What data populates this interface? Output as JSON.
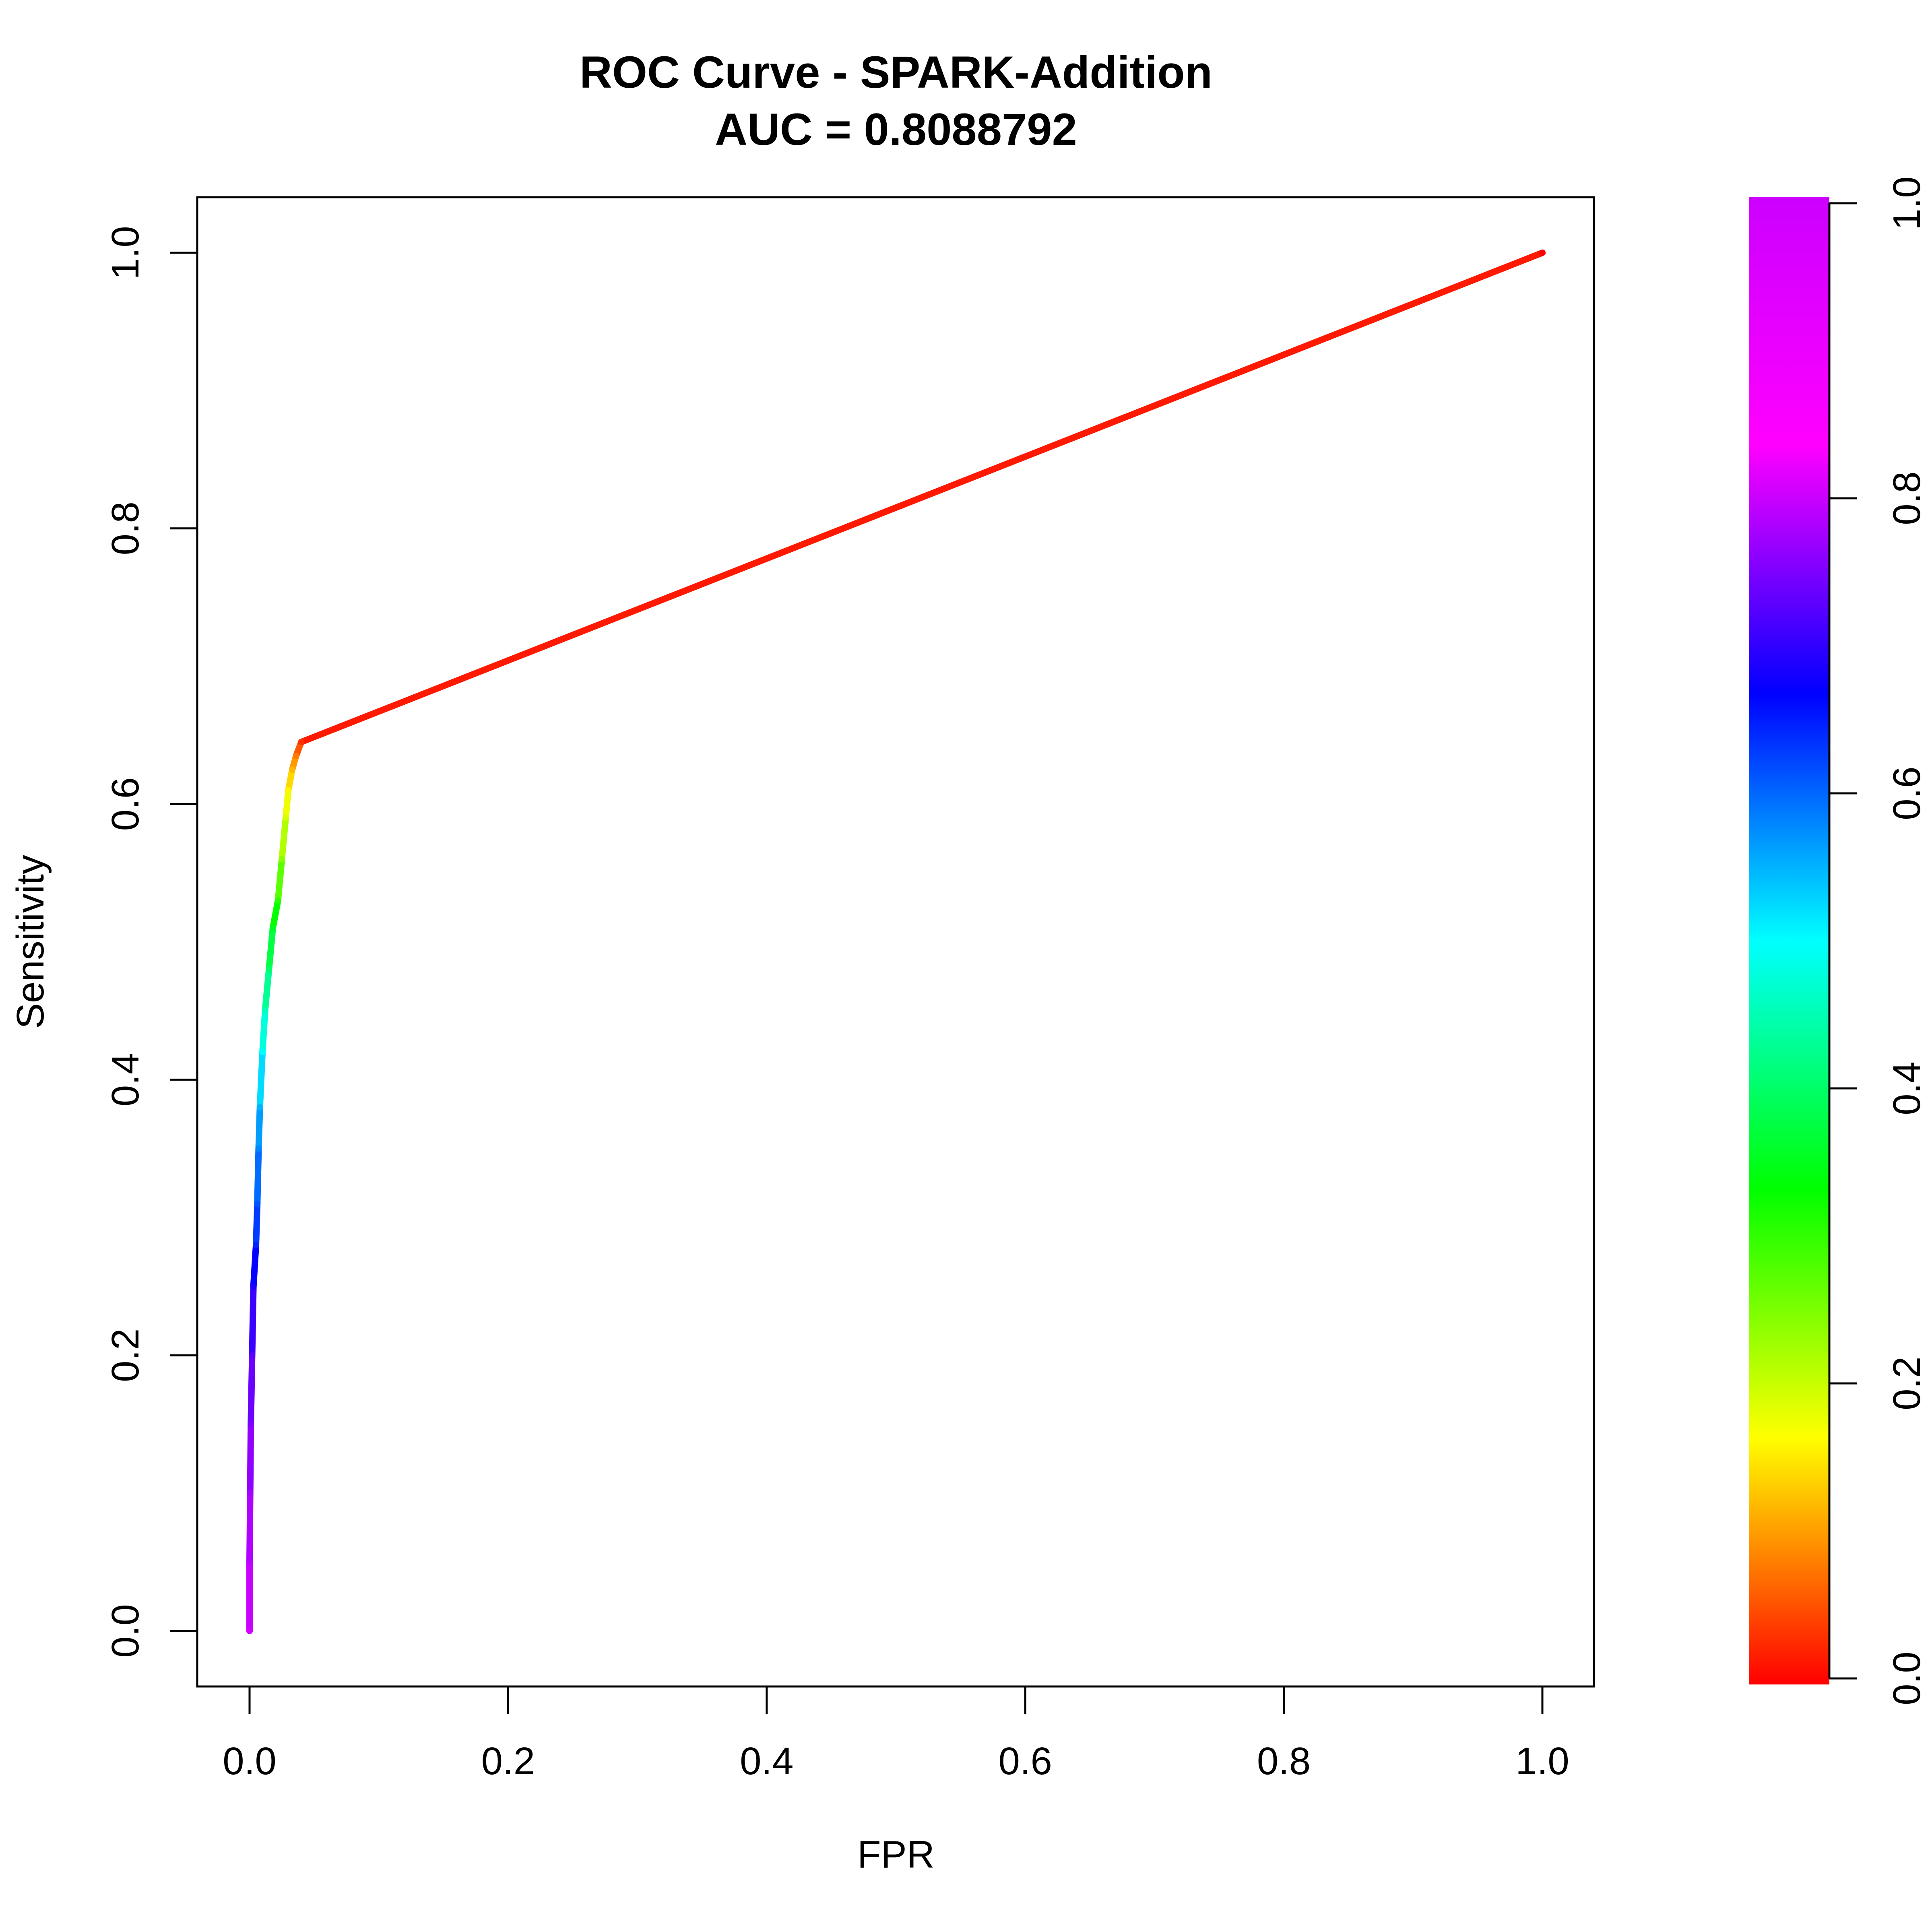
{
  "chart_data": {
    "type": "line",
    "title": "ROC Curve - SPARK-Addition",
    "subtitle": "AUC = 0.8088792",
    "xlabel": "FPR",
    "ylabel": "Sensitivity",
    "xlim": [
      0,
      1
    ],
    "ylim": [
      0,
      1
    ],
    "x_ticks": [
      "0.0",
      "0.2",
      "0.4",
      "0.6",
      "0.8",
      "1.0"
    ],
    "y_ticks": [
      "0.0",
      "0.2",
      "0.4",
      "0.6",
      "0.8",
      "1.0"
    ],
    "grid": false,
    "series": [
      {
        "points": [
          {
            "x": 0.0,
            "y": 0.0,
            "cutoff": 1.0
          },
          {
            "x": 0.0,
            "y": 0.05,
            "cutoff": 0.98
          },
          {
            "x": 0.0005,
            "y": 0.1,
            "cutoff": 0.96
          },
          {
            "x": 0.001,
            "y": 0.15,
            "cutoff": 0.93
          },
          {
            "x": 0.002,
            "y": 0.2,
            "cutoff": 0.9
          },
          {
            "x": 0.003,
            "y": 0.25,
            "cutoff": 0.85
          },
          {
            "x": 0.005,
            "y": 0.28,
            "cutoff": 0.8
          },
          {
            "x": 0.006,
            "y": 0.31,
            "cutoff": 0.76
          },
          {
            "x": 0.007,
            "y": 0.35,
            "cutoff": 0.72
          },
          {
            "x": 0.008,
            "y": 0.38,
            "cutoff": 0.68
          },
          {
            "x": 0.01,
            "y": 0.42,
            "cutoff": 0.62
          },
          {
            "x": 0.012,
            "y": 0.45,
            "cutoff": 0.57
          },
          {
            "x": 0.015,
            "y": 0.48,
            "cutoff": 0.5
          },
          {
            "x": 0.018,
            "y": 0.51,
            "cutoff": 0.44
          },
          {
            "x": 0.022,
            "y": 0.53,
            "cutoff": 0.38
          },
          {
            "x": 0.025,
            "y": 0.56,
            "cutoff": 0.3
          },
          {
            "x": 0.028,
            "y": 0.59,
            "cutoff": 0.24
          },
          {
            "x": 0.03,
            "y": 0.61,
            "cutoff": 0.2
          },
          {
            "x": 0.033,
            "y": 0.625,
            "cutoff": 0.15
          },
          {
            "x": 0.036,
            "y": 0.635,
            "cutoff": 0.1
          },
          {
            "x": 0.04,
            "y": 0.645,
            "cutoff": 0.04
          },
          {
            "x": 1.0,
            "y": 1.0,
            "cutoff": 0.0
          }
        ]
      }
    ],
    "colorbar": {
      "range": [
        0,
        1
      ],
      "ticks": [
        "0.0",
        "0.2",
        "0.4",
        "0.6",
        "0.8",
        "1.0"
      ],
      "colormap": "rainbow red-to-magenta"
    }
  }
}
